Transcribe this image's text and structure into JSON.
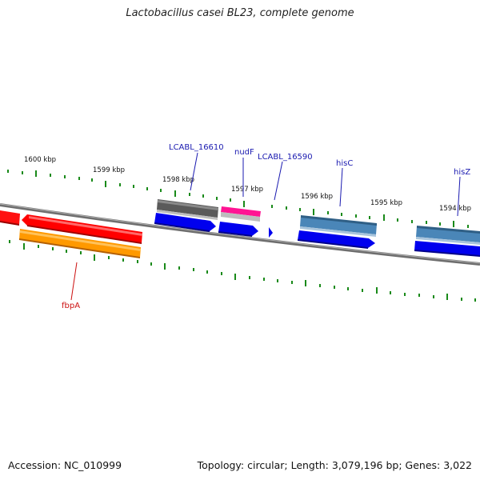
{
  "title": "Lactobacillus casei BL23, complete genome",
  "footer": {
    "accession": "Accession: NC_010999",
    "summary": "Topology: circular; Length: 3,079,196 bp; Genes: 3,022"
  },
  "ruler_labels": [
    "1600 kbp",
    "1599 kbp",
    "1598 kbp",
    "1597 kbp",
    "1596 kbp",
    "1595 kbp",
    "1594 kbp"
  ],
  "gene_labels": [
    "LCABL_16610",
    "nudF",
    "LCABL_16590",
    "hisC",
    "hisZ",
    "fbpA"
  ],
  "colors": {
    "backbone": "#7a7a7a",
    "tick": "#1a8a1a",
    "label_forward": "#1a1ab0",
    "label_reverse": "#cc1111",
    "cds_red": "#ff0000",
    "cds_orange": "#ff9900",
    "cds_gray": "#666666",
    "cds_magenta": "#ff1493",
    "cds_blue": "#0000ee",
    "cds_steel": "#4a86b8"
  }
}
